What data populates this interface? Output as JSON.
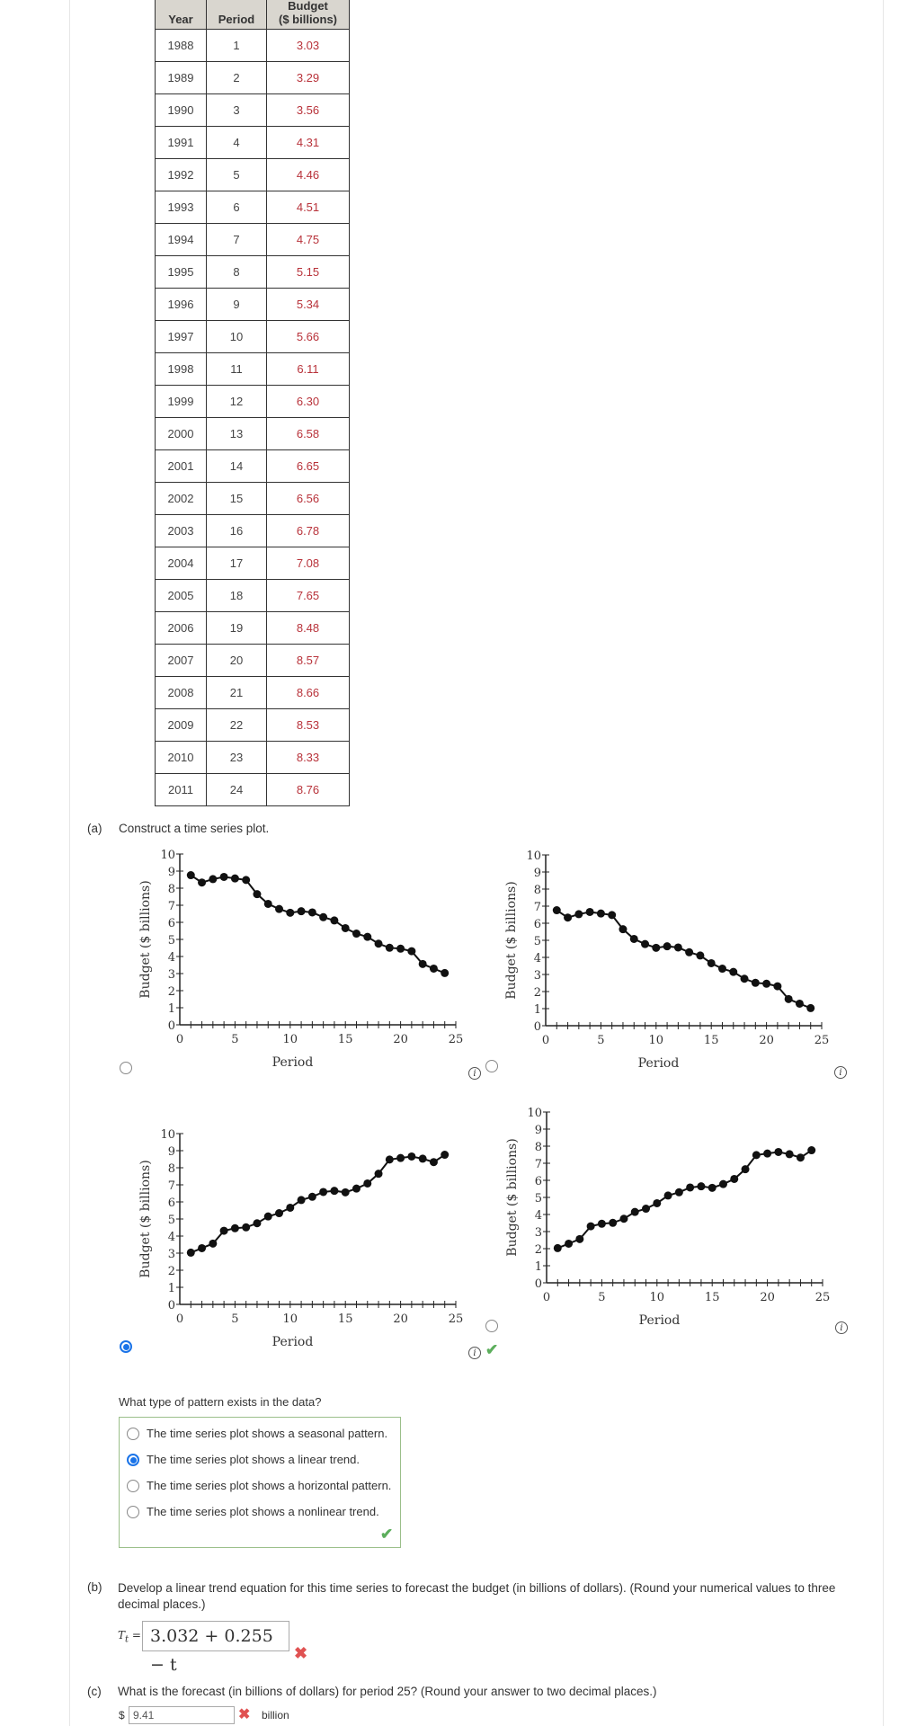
{
  "table": {
    "headers": [
      "Year",
      "Period",
      "Budget\n($ billions)"
    ],
    "header_budget_line1": "Budget",
    "header_budget_line2": "($ billions)",
    "rows": [
      [
        "1988",
        "1",
        "3.03"
      ],
      [
        "1989",
        "2",
        "3.29"
      ],
      [
        "1990",
        "3",
        "3.56"
      ],
      [
        "1991",
        "4",
        "4.31"
      ],
      [
        "1992",
        "5",
        "4.46"
      ],
      [
        "1993",
        "6",
        "4.51"
      ],
      [
        "1994",
        "7",
        "4.75"
      ],
      [
        "1995",
        "8",
        "5.15"
      ],
      [
        "1996",
        "9",
        "5.34"
      ],
      [
        "1997",
        "10",
        "5.66"
      ],
      [
        "1998",
        "11",
        "6.11"
      ],
      [
        "1999",
        "12",
        "6.30"
      ],
      [
        "2000",
        "13",
        "6.58"
      ],
      [
        "2001",
        "14",
        "6.65"
      ],
      [
        "2002",
        "15",
        "6.56"
      ],
      [
        "2003",
        "16",
        "6.78"
      ],
      [
        "2004",
        "17",
        "7.08"
      ],
      [
        "2005",
        "18",
        "7.65"
      ],
      [
        "2006",
        "19",
        "8.48"
      ],
      [
        "2007",
        "20",
        "8.57"
      ],
      [
        "2008",
        "21",
        "8.66"
      ],
      [
        "2009",
        "22",
        "8.53"
      ],
      [
        "2010",
        "23",
        "8.33"
      ],
      [
        "2011",
        "24",
        "8.76"
      ]
    ]
  },
  "part_a": {
    "label": "(a)",
    "prompt": "Construct a time series plot.",
    "selected_option": 3,
    "info_symbol": "i",
    "check_symbol": "✔"
  },
  "chart_data": [
    {
      "type": "line",
      "option": 1,
      "selected": false,
      "xlabel": "Period",
      "ylabel": "Budget ($ billions)",
      "xlim": [
        0,
        25
      ],
      "ylim": [
        0,
        10
      ],
      "x": [
        1,
        2,
        3,
        4,
        5,
        6,
        7,
        8,
        9,
        10,
        11,
        12,
        13,
        14,
        15,
        16,
        17,
        18,
        19,
        20,
        21,
        22,
        23,
        24
      ],
      "y": [
        8.76,
        8.33,
        8.53,
        8.66,
        8.57,
        8.48,
        7.65,
        7.08,
        6.78,
        6.56,
        6.65,
        6.58,
        6.3,
        6.11,
        5.66,
        5.34,
        5.15,
        4.75,
        4.51,
        4.46,
        4.31,
        3.56,
        3.29,
        3.03
      ],
      "xticks": [
        0,
        5,
        10,
        15,
        20,
        25
      ],
      "yticks": [
        0,
        1,
        2,
        3,
        4,
        5,
        6,
        7,
        8,
        9,
        10
      ]
    },
    {
      "type": "line",
      "option": 2,
      "selected": false,
      "xlabel": "Period",
      "ylabel": "Budget ($ billions)",
      "xlim": [
        0,
        25
      ],
      "ylim": [
        0,
        10
      ],
      "x": [
        1,
        2,
        3,
        4,
        5,
        6,
        7,
        8,
        9,
        10,
        11,
        12,
        13,
        14,
        15,
        16,
        17,
        18,
        19,
        20,
        21,
        22,
        23,
        24
      ],
      "y": [
        6.76,
        6.33,
        6.53,
        6.66,
        6.57,
        6.48,
        5.65,
        5.08,
        4.78,
        4.56,
        4.65,
        4.58,
        4.3,
        4.11,
        3.66,
        3.34,
        3.15,
        2.75,
        2.51,
        2.46,
        2.31,
        1.56,
        1.29,
        1.03
      ],
      "xticks": [
        0,
        5,
        10,
        15,
        20,
        25
      ],
      "yticks": [
        0,
        1,
        2,
        3,
        4,
        5,
        6,
        7,
        8,
        9,
        10
      ]
    },
    {
      "type": "line",
      "option": 3,
      "selected": true,
      "xlabel": "Period",
      "ylabel": "Budget ($ billions)",
      "xlim": [
        0,
        25
      ],
      "ylim": [
        0,
        10
      ],
      "x": [
        1,
        2,
        3,
        4,
        5,
        6,
        7,
        8,
        9,
        10,
        11,
        12,
        13,
        14,
        15,
        16,
        17,
        18,
        19,
        20,
        21,
        22,
        23,
        24
      ],
      "y": [
        3.03,
        3.29,
        3.56,
        4.31,
        4.46,
        4.51,
        4.75,
        5.15,
        5.34,
        5.66,
        6.11,
        6.3,
        6.58,
        6.65,
        6.56,
        6.78,
        7.08,
        7.65,
        8.48,
        8.57,
        8.66,
        8.53,
        8.33,
        8.76
      ],
      "xticks": [
        0,
        5,
        10,
        15,
        20,
        25
      ],
      "yticks": [
        0,
        1,
        2,
        3,
        4,
        5,
        6,
        7,
        8,
        9,
        10
      ]
    },
    {
      "type": "line",
      "option": 4,
      "selected": false,
      "xlabel": "Period",
      "ylabel": "Budget ($ billions)",
      "xlim": [
        0,
        25
      ],
      "ylim": [
        0,
        10
      ],
      "x": [
        1,
        2,
        3,
        4,
        5,
        6,
        7,
        8,
        9,
        10,
        11,
        12,
        13,
        14,
        15,
        16,
        17,
        18,
        19,
        20,
        21,
        22,
        23,
        24
      ],
      "y": [
        2.03,
        2.29,
        2.56,
        3.31,
        3.46,
        3.51,
        3.75,
        4.15,
        4.34,
        4.66,
        5.11,
        5.3,
        5.58,
        5.65,
        5.56,
        5.78,
        6.08,
        6.65,
        7.48,
        7.57,
        7.66,
        7.53,
        7.33,
        7.76
      ],
      "xticks": [
        0,
        5,
        10,
        15,
        20,
        25
      ],
      "yticks": [
        0,
        1,
        2,
        3,
        4,
        5,
        6,
        7,
        8,
        9,
        10
      ]
    }
  ],
  "pattern": {
    "question": "What type of pattern exists in the data?",
    "options": [
      "The time series plot shows a seasonal pattern.",
      "The time series plot shows a linear trend.",
      "The time series plot shows a horizontal pattern.",
      "The time series plot shows a nonlinear trend."
    ],
    "selected": 1,
    "status": "correct"
  },
  "part_b": {
    "label": "(b)",
    "prompt": "Develop a linear trend equation for this time series to forecast the budget (in billions of dollars). (Round your numerical values to three decimal places.)",
    "eq_label": "T",
    "eq_sub": "t",
    "eq_equals": "=",
    "answer": "3.032 + 0.255 − t",
    "status": "incorrect",
    "x_symbol": "✖"
  },
  "part_c": {
    "label": "(c)",
    "prompt": "What is the forecast (in billions of dollars) for period 25? (Round your answer to two decimal places.)",
    "prefix": "$",
    "answer": "9.41",
    "suffix": "billion",
    "status": "incorrect"
  },
  "colors": {
    "selected": "#1a73e8",
    "correct": "#5cae5c",
    "incorrect": "#e05252",
    "budget_text": "#b8323a",
    "header_bg": "#d9d6cf"
  }
}
